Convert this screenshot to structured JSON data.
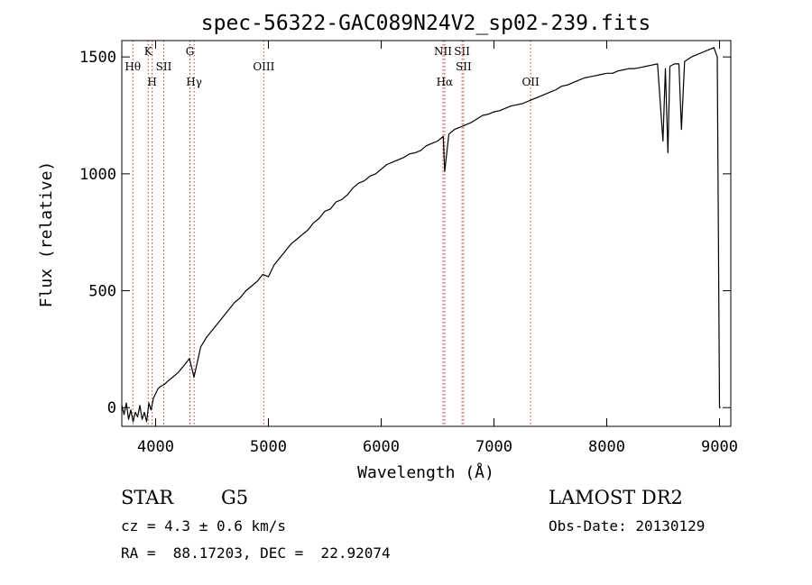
{
  "chart_data": {
    "type": "line",
    "title": "spec-56322-GAC089N24V2_sp02-239.fits",
    "xlabel": "Wavelength (Å)",
    "ylabel": "Flux (relative)",
    "xlim": [
      3700,
      9100
    ],
    "ylim": [
      -80,
      1570
    ],
    "xticks": [
      4000,
      5000,
      6000,
      7000,
      8000,
      9000
    ],
    "yticks": [
      0,
      500,
      1000,
      1500
    ],
    "grid": false,
    "line_color": "#000000",
    "marker_color": "#c0392b",
    "series": [
      {
        "x": [
          3700,
          3720,
          3740,
          3760,
          3780,
          3800,
          3820,
          3840,
          3860,
          3880,
          3900,
          3920,
          3940,
          3960,
          3980,
          4000,
          4020,
          4040,
          4060,
          4080,
          4100,
          4150,
          4200,
          4250,
          4300,
          4340,
          4400,
          4450,
          4500,
          4550,
          4600,
          4650,
          4700,
          4750,
          4800,
          4850,
          4900,
          4950,
          5000,
          5050,
          5100,
          5150,
          5200,
          5250,
          5300,
          5350,
          5400,
          5450,
          5500,
          5550,
          5600,
          5650,
          5700,
          5750,
          5800,
          5850,
          5900,
          5950,
          6000,
          6050,
          6100,
          6150,
          6200,
          6250,
          6300,
          6350,
          6400,
          6450,
          6500,
          6550,
          6563,
          6600,
          6650,
          6700,
          6750,
          6800,
          6850,
          6900,
          6950,
          7000,
          7050,
          7100,
          7150,
          7200,
          7250,
          7300,
          7350,
          7400,
          7450,
          7500,
          7550,
          7600,
          7650,
          7700,
          7750,
          7800,
          7850,
          7900,
          7950,
          8000,
          8050,
          8100,
          8150,
          8200,
          8250,
          8300,
          8350,
          8400,
          8450,
          8498,
          8520,
          8542,
          8560,
          8600,
          8640,
          8662,
          8690,
          8750,
          8800,
          8850,
          8900,
          8950,
          8980,
          9000,
          9010
        ],
        "y": [
          10,
          -30,
          20,
          -50,
          -10,
          -60,
          -20,
          -40,
          10,
          -50,
          -20,
          -60,
          20,
          -10,
          40,
          60,
          80,
          90,
          95,
          100,
          110,
          130,
          150,
          180,
          210,
          130,
          260,
          300,
          330,
          360,
          390,
          420,
          450,
          470,
          500,
          520,
          540,
          570,
          560,
          610,
          640,
          670,
          700,
          720,
          740,
          760,
          790,
          810,
          840,
          850,
          880,
          890,
          910,
          940,
          960,
          970,
          990,
          1000,
          1020,
          1040,
          1050,
          1060,
          1070,
          1085,
          1090,
          1100,
          1120,
          1130,
          1140,
          1160,
          1010,
          1170,
          1190,
          1200,
          1210,
          1220,
          1235,
          1250,
          1255,
          1265,
          1270,
          1280,
          1290,
          1295,
          1300,
          1310,
          1320,
          1330,
          1340,
          1350,
          1360,
          1375,
          1380,
          1390,
          1400,
          1410,
          1415,
          1420,
          1425,
          1430,
          1430,
          1440,
          1445,
          1450,
          1450,
          1455,
          1460,
          1465,
          1470,
          1140,
          1450,
          1090,
          1460,
          1470,
          1470,
          1190,
          1480,
          1500,
          1510,
          1520,
          1530,
          1540,
          1500,
          0,
          0
        ]
      }
    ],
    "line_markers": [
      {
        "name": "Hθ",
        "x": 3798,
        "row": 2
      },
      {
        "name": "K",
        "x": 3934,
        "row": 1
      },
      {
        "name": "H",
        "x": 3969,
        "row": 3
      },
      {
        "name": "SII",
        "x": 4072,
        "row": 2
      },
      {
        "name": "G",
        "x": 4304,
        "row": 1
      },
      {
        "name": "Hγ",
        "x": 4341,
        "row": 3
      },
      {
        "name": "OIII",
        "x": 4959,
        "row": 2
      },
      {
        "name": "NII",
        "x": 6548,
        "row": 1
      },
      {
        "name": "Hα",
        "x": 6563,
        "row": 3
      },
      {
        "name": "SII",
        "x": 6717,
        "row": 1
      },
      {
        "name": "SII",
        "x": 6731,
        "row": 2
      },
      {
        "name": "OII",
        "x": 7325,
        "row": 3
      }
    ]
  },
  "info": {
    "object_class": "STAR",
    "subclass": "G5",
    "survey": "LAMOST DR2",
    "cz": "cz = 4.3 ± 0.6 km/s",
    "obs_date": "Obs-Date: 20130129",
    "coords": "RA =  88.17203, DEC =  22.92074"
  }
}
